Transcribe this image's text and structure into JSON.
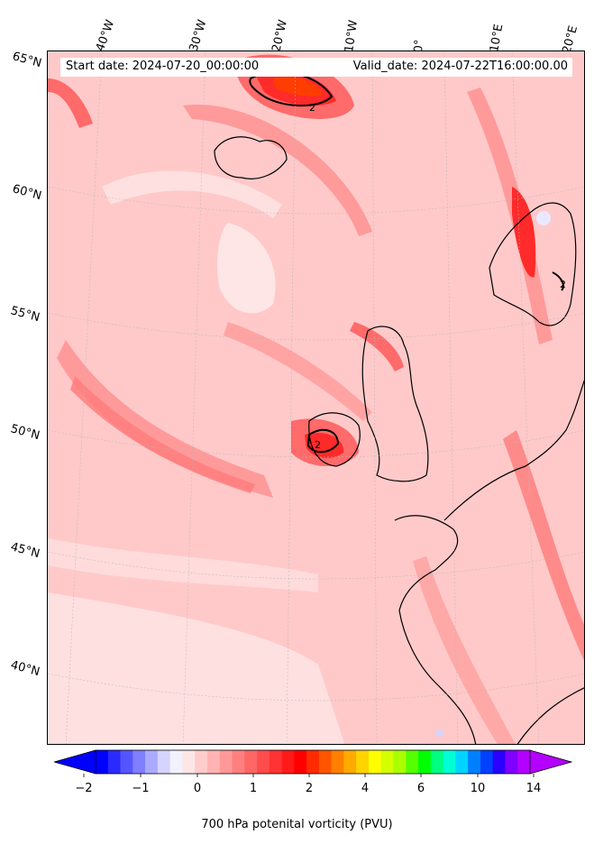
{
  "header": {
    "start_date": "Start date: 2024-07-20_00:00:00",
    "valid_date": "Valid_date: 2024-07-22T16:00:00.00"
  },
  "longitude_labels": [
    "40°W",
    "30°W",
    "20°W",
    "10°W",
    "0°",
    "10°E",
    "20°E"
  ],
  "latitude_labels": [
    "65°N",
    "60°N",
    "55°N",
    "50°N",
    "45°N",
    "40°N"
  ],
  "colorbar": {
    "title": "700 hPa potenital vorticity (PVU)",
    "tick_labels": [
      "−2",
      "−1",
      "0",
      "1",
      "2",
      "4",
      "6",
      "10",
      "14"
    ],
    "colors": [
      "#0000ff",
      "#2a2aff",
      "#5555ff",
      "#7f7fff",
      "#aaaaff",
      "#d4d4ff",
      "#f2f2ff",
      "#ffe6e6",
      "#ffcccc",
      "#ffb3b3",
      "#ff9999",
      "#ff7f7f",
      "#ff6666",
      "#ff4c4c",
      "#ff3333",
      "#ff1a1a",
      "#ff0000",
      "#ff2b00",
      "#ff5500",
      "#ff8000",
      "#ffaa00",
      "#ffd400",
      "#ffff00",
      "#d4ff00",
      "#aaff00",
      "#55ff00",
      "#00ff00",
      "#00ff80",
      "#00ffd4",
      "#00d4ff",
      "#0080ff",
      "#0040ff",
      "#2a00ff",
      "#8000ff",
      "#b400ff"
    ],
    "extend_min_color": "#0000ff",
    "extend_max_color": "#b400ff"
  },
  "field_colors": {
    "background": "#ffc9c9",
    "light": "#ffe0e0",
    "pale": "#fff0f0",
    "medium": "#ff9a9a",
    "strong": "#ff6a6a",
    "intense": "#ff2a2a",
    "peak": "#ff3d00",
    "land_outline": "#000000"
  },
  "contour_labels": [
    "2",
    "2",
    "2"
  ]
}
